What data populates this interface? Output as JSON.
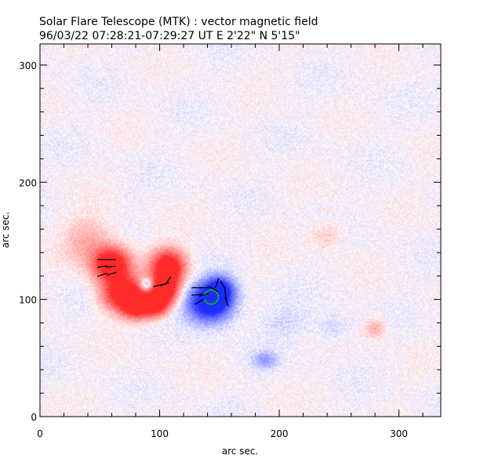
{
  "chart_data": {
    "type": "heatmap",
    "title": "Solar Flare Telescope (MTK) : vector magnetic field",
    "subtitle": "96/03/22  07:28:21-07:29:27 UT    E 2'22\"  N 5'15\"",
    "xlabel": "arc sec.",
    "ylabel": "arc sec.",
    "xlim": [
      0,
      335
    ],
    "ylim": [
      0,
      318
    ],
    "xticks": [
      0,
      100,
      200,
      300
    ],
    "yticks": [
      0,
      100,
      200,
      300
    ],
    "x_minor_step": 20,
    "y_minor_step": 20,
    "colors": {
      "positive": "#ff2a2a",
      "negative": "#1f2cff",
      "background": "#ffffff",
      "arrows": "#000000",
      "contour": "#00c000"
    },
    "field_sources": [
      {
        "polarity": "positive",
        "x": 60,
        "y": 130,
        "sx": 11,
        "sy": 10,
        "strength": 1.0
      },
      {
        "polarity": "positive",
        "x": 70,
        "y": 105,
        "sx": 12,
        "sy": 10,
        "strength": 1.0
      },
      {
        "polarity": "positive",
        "x": 82,
        "y": 93,
        "sx": 9,
        "sy": 7,
        "strength": 0.8
      },
      {
        "polarity": "positive",
        "x": 97,
        "y": 96,
        "sx": 7,
        "sy": 7,
        "strength": 0.75
      },
      {
        "polarity": "positive",
        "x": 107,
        "y": 128,
        "sx": 10,
        "sy": 10,
        "strength": 1.0
      },
      {
        "polarity": "positive",
        "x": 105,
        "y": 108,
        "sx": 8,
        "sy": 9,
        "strength": 0.85
      },
      {
        "polarity": "positive",
        "x": 40,
        "y": 150,
        "sx": 14,
        "sy": 14,
        "strength": 0.25
      },
      {
        "polarity": "positive",
        "x": 280,
        "y": 75,
        "sx": 6,
        "sy": 6,
        "strength": 0.25
      },
      {
        "polarity": "positive",
        "x": 240,
        "y": 155,
        "sx": 10,
        "sy": 8,
        "strength": 0.15
      },
      {
        "polarity": "negative",
        "x": 142,
        "y": 97,
        "sx": 13,
        "sy": 11,
        "strength": 1.0
      },
      {
        "polarity": "negative",
        "x": 150,
        "y": 108,
        "sx": 8,
        "sy": 8,
        "strength": 0.7
      },
      {
        "polarity": "negative",
        "x": 89,
        "y": 113,
        "sx": 3.5,
        "sy": 3.5,
        "strength": 0.55
      },
      {
        "polarity": "negative",
        "x": 188,
        "y": 48,
        "sx": 7,
        "sy": 5,
        "strength": 0.28
      },
      {
        "polarity": "negative",
        "x": 245,
        "y": 75,
        "sx": 10,
        "sy": 8,
        "strength": 0.12
      },
      {
        "polarity": "negative",
        "x": 205,
        "y": 80,
        "sx": 14,
        "sy": 10,
        "strength": 0.1
      }
    ],
    "transverse_field_vectors": [
      {
        "x": 52,
        "y": 134,
        "angle_deg": 0
      },
      {
        "x": 59,
        "y": 134,
        "angle_deg": 0
      },
      {
        "x": 52,
        "y": 128,
        "angle_deg": 8
      },
      {
        "x": 59,
        "y": 128,
        "angle_deg": 5
      },
      {
        "x": 52,
        "y": 121,
        "angle_deg": 20
      },
      {
        "x": 60,
        "y": 122,
        "angle_deg": 15
      },
      {
        "x": 99,
        "y": 112,
        "angle_deg": 15
      },
      {
        "x": 104,
        "y": 113,
        "angle_deg": 20
      },
      {
        "x": 107,
        "y": 116,
        "angle_deg": 55
      },
      {
        "x": 131,
        "y": 110,
        "angle_deg": 0
      },
      {
        "x": 137,
        "y": 110,
        "angle_deg": 0
      },
      {
        "x": 131,
        "y": 104,
        "angle_deg": 5
      },
      {
        "x": 137,
        "y": 104,
        "angle_deg": 15
      },
      {
        "x": 133,
        "y": 98,
        "angle_deg": 30
      },
      {
        "x": 145,
        "y": 109,
        "angle_deg": -30
      },
      {
        "x": 148,
        "y": 114,
        "angle_deg": 70
      },
      {
        "x": 153,
        "y": 112,
        "angle_deg": -60
      },
      {
        "x": 155,
        "y": 104,
        "angle_deg": -80
      },
      {
        "x": 156,
        "y": 98,
        "angle_deg": -70
      }
    ],
    "contours": [
      {
        "x": 143,
        "y": 102,
        "r": 6,
        "arc_start_deg": 200,
        "arc_end_deg": 520
      }
    ]
  }
}
